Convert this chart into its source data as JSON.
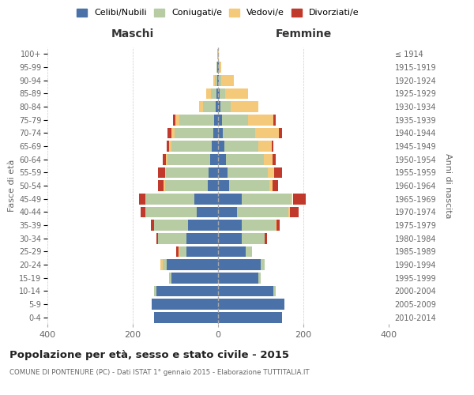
{
  "age_groups": [
    "0-4",
    "5-9",
    "10-14",
    "15-19",
    "20-24",
    "25-29",
    "30-34",
    "35-39",
    "40-44",
    "45-49",
    "50-54",
    "55-59",
    "60-64",
    "65-69",
    "70-74",
    "75-79",
    "80-84",
    "85-89",
    "90-94",
    "95-99",
    "100+"
  ],
  "birth_years": [
    "2010-2014",
    "2005-2009",
    "2000-2004",
    "1995-1999",
    "1990-1994",
    "1985-1989",
    "1980-1984",
    "1975-1979",
    "1970-1974",
    "1965-1969",
    "1960-1964",
    "1955-1959",
    "1950-1954",
    "1945-1949",
    "1940-1944",
    "1935-1939",
    "1930-1934",
    "1925-1929",
    "1920-1924",
    "1915-1919",
    "≤ 1914"
  ],
  "maschi": {
    "celibi": [
      150,
      155,
      145,
      110,
      120,
      75,
      75,
      70,
      50,
      55,
      25,
      22,
      18,
      15,
      12,
      10,
      5,
      4,
      2,
      1,
      0
    ],
    "coniugati": [
      0,
      0,
      5,
      5,
      10,
      15,
      65,
      80,
      120,
      115,
      100,
      100,
      100,
      95,
      90,
      80,
      30,
      12,
      5,
      2,
      1
    ],
    "vedovi": [
      0,
      0,
      0,
      0,
      5,
      3,
      0,
      0,
      0,
      0,
      3,
      3,
      4,
      5,
      8,
      10,
      10,
      12,
      5,
      1,
      0
    ],
    "divorziati": [
      0,
      0,
      0,
      0,
      0,
      5,
      5,
      8,
      12,
      15,
      12,
      15,
      8,
      5,
      8,
      5,
      0,
      0,
      0,
      0,
      0
    ]
  },
  "femmine": {
    "nubili": [
      150,
      155,
      130,
      95,
      100,
      65,
      55,
      55,
      45,
      55,
      25,
      22,
      18,
      15,
      12,
      10,
      5,
      4,
      2,
      1,
      0
    ],
    "coniugate": [
      0,
      0,
      5,
      5,
      10,
      15,
      55,
      80,
      120,
      115,
      95,
      95,
      90,
      80,
      75,
      60,
      25,
      12,
      5,
      2,
      0
    ],
    "vedove": [
      0,
      0,
      0,
      0,
      0,
      0,
      0,
      2,
      3,
      5,
      8,
      15,
      20,
      30,
      55,
      60,
      65,
      55,
      30,
      5,
      2
    ],
    "divorziate": [
      0,
      0,
      0,
      0,
      0,
      0,
      5,
      8,
      20,
      30,
      12,
      18,
      8,
      5,
      8,
      5,
      0,
      0,
      0,
      0,
      0
    ]
  },
  "colors": {
    "celibi": "#4a72a8",
    "coniugati": "#b8cca4",
    "vedovi": "#f5c97a",
    "divorziati": "#c0392b"
  },
  "xlim": 400,
  "title": "Popolazione per età, sesso e stato civile - 2015",
  "subtitle": "COMUNE DI PONTENURE (PC) - Dati ISTAT 1° gennaio 2015 - Elaborazione TUTTITALIA.IT",
  "ylabel_left": "Fasce di età",
  "ylabel_right": "Anni di nascita",
  "xlabel_left": "Maschi",
  "xlabel_right": "Femmine",
  "bg_color": "#ffffff",
  "grid_color": "#cccccc",
  "bar_height": 0.82
}
